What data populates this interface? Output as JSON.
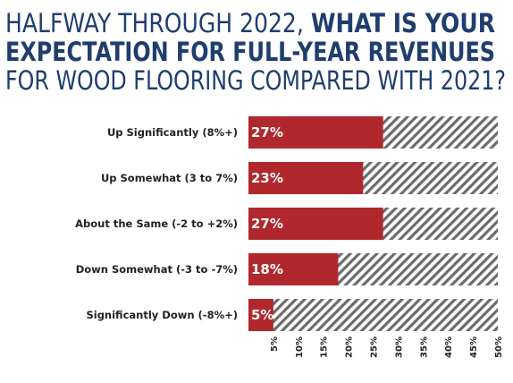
{
  "chart_data": {
    "type": "hbar",
    "title": [
      [
        {
          "text": "HALFWAY THROUGH 2022, ",
          "bold": false
        },
        {
          "text": "WHAT IS YOUR",
          "bold": true
        }
      ],
      [
        {
          "text": "EXPECTATION FOR FULL-YEAR REVENUES",
          "bold": true
        }
      ],
      [
        {
          "text": "FOR WOOD FLOORING COMPARED WITH 2021?",
          "bold": false
        }
      ]
    ],
    "categories": [
      "Up Significantly (8%+)",
      "Up Somewhat (3 to 7%)",
      "About the Same (-2 to +2%)",
      "Down Somewhat (-3 to -7%)",
      "Significantly Down (-8%+)"
    ],
    "values": [
      27,
      23,
      27,
      18,
      5
    ],
    "value_labels": [
      "27%",
      "23%",
      "27%",
      "18%",
      "5%"
    ],
    "color": "#b0282e",
    "xlim": [
      0,
      50
    ],
    "xticks": [
      {
        "value": 5,
        "label": "5%"
      },
      {
        "value": 10,
        "label": "10%"
      },
      {
        "value": 15,
        "label": "15%"
      },
      {
        "value": 20,
        "label": "20%"
      },
      {
        "value": 25,
        "label": "25%"
      },
      {
        "value": 30,
        "label": "30%"
      },
      {
        "value": 35,
        "label": "35%"
      },
      {
        "value": 40,
        "label": "40%"
      },
      {
        "value": 45,
        "label": "45%"
      },
      {
        "value": 50,
        "label": "50%"
      }
    ]
  }
}
